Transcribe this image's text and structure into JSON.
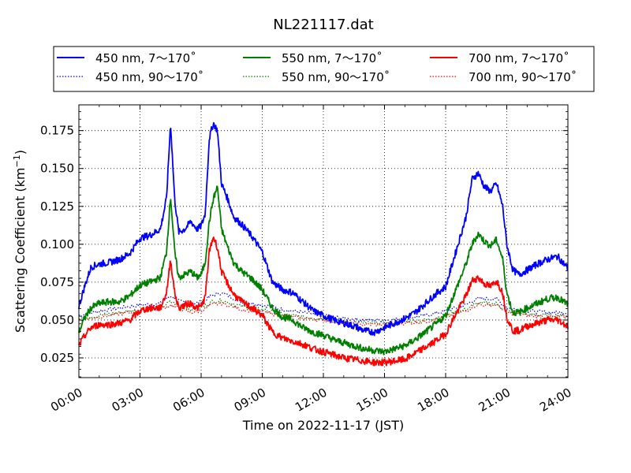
{
  "chart_data": {
    "type": "line",
    "title": "NL221117.dat",
    "xlabel": "Time on 2022-11-17 (JST)",
    "ylabel_main": "Scattering Coefficient (km",
    "ylabel_sup": "−1",
    "ylabel_end": ")",
    "xlim": [
      0,
      24
    ],
    "ylim": [
      0.012,
      0.192
    ],
    "grid": true,
    "legend_position": "top, above plot",
    "x_ticks": [
      {
        "v": 0,
        "label": "00:00"
      },
      {
        "v": 3,
        "label": "03:00"
      },
      {
        "v": 6,
        "label": "06:00"
      },
      {
        "v": 9,
        "label": "09:00"
      },
      {
        "v": 12,
        "label": "12:00"
      },
      {
        "v": 15,
        "label": "15:00"
      },
      {
        "v": 18,
        "label": "18:00"
      },
      {
        "v": 21,
        "label": "21:00"
      },
      {
        "v": 24,
        "label": "24:00"
      }
    ],
    "y_ticks": [
      {
        "v": 0.025,
        "label": "0.025"
      },
      {
        "v": 0.05,
        "label": "0.050"
      },
      {
        "v": 0.075,
        "label": "0.075"
      },
      {
        "v": 0.1,
        "label": "0.100"
      },
      {
        "v": 0.125,
        "label": "0.125"
      },
      {
        "v": 0.15,
        "label": "0.150"
      },
      {
        "v": 0.175,
        "label": "0.175"
      }
    ],
    "series": [
      {
        "name": "450 nm, 7～170˚",
        "color": "#0000ff",
        "style": "solid",
        "x": [
          0,
          0.3,
          0.6,
          1,
          1.5,
          2,
          2.5,
          3,
          3.5,
          4,
          4.3,
          4.5,
          4.7,
          4.9,
          5.2,
          5.5,
          5.8,
          6,
          6.2,
          6.4,
          6.6,
          6.8,
          7,
          7.3,
          7.6,
          8,
          8.5,
          9,
          9.5,
          10,
          10.5,
          11,
          11.5,
          12,
          12.5,
          13,
          13.5,
          14,
          14.5,
          15,
          15.5,
          16,
          16.5,
          17,
          17.5,
          18,
          18.5,
          19,
          19.3,
          19.6,
          19.9,
          20.2,
          20.5,
          20.8,
          21,
          21.3,
          21.6,
          22,
          22.5,
          23,
          23.5,
          24
        ],
        "y": [
          0.059,
          0.073,
          0.085,
          0.087,
          0.088,
          0.09,
          0.094,
          0.104,
          0.106,
          0.11,
          0.13,
          0.18,
          0.13,
          0.108,
          0.11,
          0.115,
          0.11,
          0.112,
          0.12,
          0.17,
          0.18,
          0.175,
          0.14,
          0.13,
          0.118,
          0.113,
          0.105,
          0.095,
          0.075,
          0.07,
          0.068,
          0.062,
          0.056,
          0.053,
          0.05,
          0.048,
          0.046,
          0.043,
          0.042,
          0.045,
          0.048,
          0.051,
          0.055,
          0.061,
          0.067,
          0.072,
          0.095,
          0.118,
          0.143,
          0.147,
          0.138,
          0.135,
          0.14,
          0.125,
          0.1,
          0.083,
          0.08,
          0.083,
          0.087,
          0.09,
          0.092,
          0.084
        ]
      },
      {
        "name": "450 nm, 90～170˚",
        "color": "#0000ff",
        "style": "dotted",
        "x": [
          0,
          1,
          2,
          3,
          4,
          4.5,
          5,
          5.5,
          6,
          6.5,
          7,
          7.5,
          8,
          9,
          10,
          11,
          12,
          13,
          14,
          15,
          16,
          17,
          18,
          19,
          19.5,
          20,
          20.5,
          21,
          22,
          23,
          24
        ],
        "y": [
          0.053,
          0.056,
          0.058,
          0.06,
          0.061,
          0.066,
          0.062,
          0.06,
          0.062,
          0.066,
          0.068,
          0.065,
          0.062,
          0.06,
          0.057,
          0.055,
          0.053,
          0.051,
          0.05,
          0.05,
          0.051,
          0.053,
          0.056,
          0.06,
          0.064,
          0.064,
          0.064,
          0.058,
          0.056,
          0.055,
          0.055
        ]
      },
      {
        "name": "550 nm, 7～170˚",
        "color": "#008000",
        "style": "solid",
        "x": [
          0,
          0.3,
          0.6,
          1,
          1.5,
          2,
          2.5,
          3,
          3.5,
          4,
          4.3,
          4.5,
          4.7,
          4.9,
          5.2,
          5.5,
          5.8,
          6,
          6.2,
          6.4,
          6.6,
          6.8,
          7,
          7.3,
          7.6,
          8,
          8.5,
          9,
          9.5,
          10,
          10.5,
          11,
          11.5,
          12,
          12.5,
          13,
          13.5,
          14,
          14.5,
          15,
          15.5,
          16,
          16.5,
          17,
          17.5,
          18,
          18.5,
          19,
          19.3,
          19.6,
          19.9,
          20.2,
          20.5,
          20.8,
          21,
          21.3,
          21.6,
          22,
          22.5,
          23,
          23.5,
          24
        ],
        "y": [
          0.042,
          0.052,
          0.058,
          0.061,
          0.062,
          0.062,
          0.066,
          0.073,
          0.075,
          0.078,
          0.095,
          0.132,
          0.095,
          0.078,
          0.08,
          0.082,
          0.078,
          0.08,
          0.088,
          0.115,
          0.13,
          0.138,
          0.11,
          0.098,
          0.088,
          0.082,
          0.077,
          0.07,
          0.058,
          0.052,
          0.05,
          0.045,
          0.042,
          0.04,
          0.037,
          0.035,
          0.033,
          0.031,
          0.03,
          0.029,
          0.031,
          0.033,
          0.037,
          0.042,
          0.047,
          0.053,
          0.07,
          0.087,
          0.1,
          0.107,
          0.102,
          0.099,
          0.103,
          0.09,
          0.068,
          0.055,
          0.055,
          0.058,
          0.061,
          0.064,
          0.065,
          0.06
        ]
      },
      {
        "name": "550 nm, 90～170˚",
        "color": "#008000",
        "style": "dotted",
        "x": [
          0,
          1,
          2,
          3,
          4,
          4.5,
          5,
          5.5,
          6,
          6.5,
          7,
          7.5,
          8,
          9,
          10,
          11,
          12,
          13,
          14,
          15,
          16,
          17,
          18,
          19,
          19.5,
          20,
          20.5,
          21,
          22,
          23,
          24
        ],
        "y": [
          0.051,
          0.053,
          0.055,
          0.057,
          0.058,
          0.062,
          0.059,
          0.057,
          0.058,
          0.062,
          0.063,
          0.061,
          0.059,
          0.057,
          0.054,
          0.052,
          0.051,
          0.049,
          0.048,
          0.048,
          0.049,
          0.05,
          0.053,
          0.057,
          0.061,
          0.061,
          0.061,
          0.056,
          0.054,
          0.053,
          0.053
        ]
      },
      {
        "name": "700 nm, 7～170˚",
        "color": "#ff0000",
        "style": "solid",
        "x": [
          0,
          0.3,
          0.6,
          1,
          1.5,
          2,
          2.5,
          3,
          3.5,
          4,
          4.3,
          4.5,
          4.7,
          4.9,
          5.2,
          5.5,
          5.8,
          6,
          6.2,
          6.4,
          6.6,
          6.8,
          7,
          7.3,
          7.6,
          8,
          8.5,
          9,
          9.5,
          10,
          10.5,
          11,
          11.5,
          12,
          12.5,
          13,
          13.5,
          14,
          14.5,
          15,
          15.5,
          16,
          16.5,
          17,
          17.5,
          18,
          18.5,
          19,
          19.3,
          19.6,
          19.9,
          20.2,
          20.5,
          20.8,
          21,
          21.3,
          21.6,
          22,
          22.5,
          23,
          23.5,
          24
        ],
        "y": [
          0.033,
          0.04,
          0.045,
          0.047,
          0.047,
          0.048,
          0.05,
          0.056,
          0.058,
          0.058,
          0.068,
          0.09,
          0.068,
          0.058,
          0.06,
          0.061,
          0.058,
          0.059,
          0.065,
          0.095,
          0.105,
          0.098,
          0.082,
          0.074,
          0.067,
          0.062,
          0.058,
          0.053,
          0.042,
          0.038,
          0.036,
          0.034,
          0.031,
          0.029,
          0.027,
          0.025,
          0.024,
          0.023,
          0.022,
          0.022,
          0.023,
          0.024,
          0.028,
          0.032,
          0.036,
          0.041,
          0.054,
          0.066,
          0.076,
          0.078,
          0.074,
          0.072,
          0.076,
          0.068,
          0.052,
          0.043,
          0.043,
          0.046,
          0.048,
          0.05,
          0.05,
          0.046
        ]
      },
      {
        "name": "700 nm, 90～170˚",
        "color": "#ff0000",
        "style": "dotted",
        "x": [
          0,
          1,
          2,
          3,
          4,
          4.5,
          5,
          5.5,
          6,
          6.5,
          7,
          7.5,
          8,
          9,
          10,
          11,
          12,
          13,
          14,
          15,
          16,
          17,
          18,
          19,
          19.5,
          20,
          20.5,
          21,
          22,
          23,
          24
        ],
        "y": [
          0.05,
          0.052,
          0.054,
          0.056,
          0.057,
          0.06,
          0.057,
          0.055,
          0.056,
          0.06,
          0.061,
          0.059,
          0.057,
          0.055,
          0.053,
          0.051,
          0.05,
          0.048,
          0.047,
          0.047,
          0.048,
          0.049,
          0.052,
          0.056,
          0.06,
          0.06,
          0.06,
          0.055,
          0.053,
          0.052,
          0.052
        ]
      }
    ]
  }
}
